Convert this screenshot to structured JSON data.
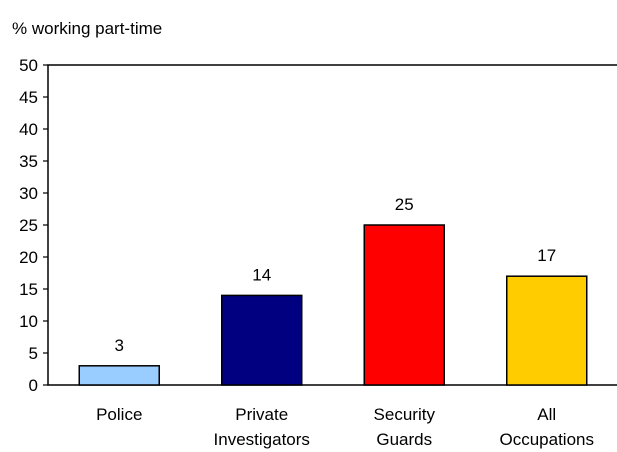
{
  "chart_data": {
    "type": "bar",
    "ylabel": "% working part-time",
    "categories": [
      [
        "Police"
      ],
      [
        "Private",
        "Investigators"
      ],
      [
        "Security",
        "Guards"
      ],
      [
        "All",
        "Occupations"
      ]
    ],
    "values": [
      3,
      14,
      25,
      17
    ],
    "data_labels": [
      "3",
      "14",
      "25",
      "17"
    ],
    "bar_colors": [
      "#99ccff",
      "#000080",
      "#ff0000",
      "#ffcc00"
    ],
    "ylim": [
      0,
      50
    ],
    "yticks": [
      0,
      5,
      10,
      15,
      20,
      25,
      30,
      35,
      40,
      45,
      50
    ],
    "grid": false,
    "legend": "none"
  }
}
